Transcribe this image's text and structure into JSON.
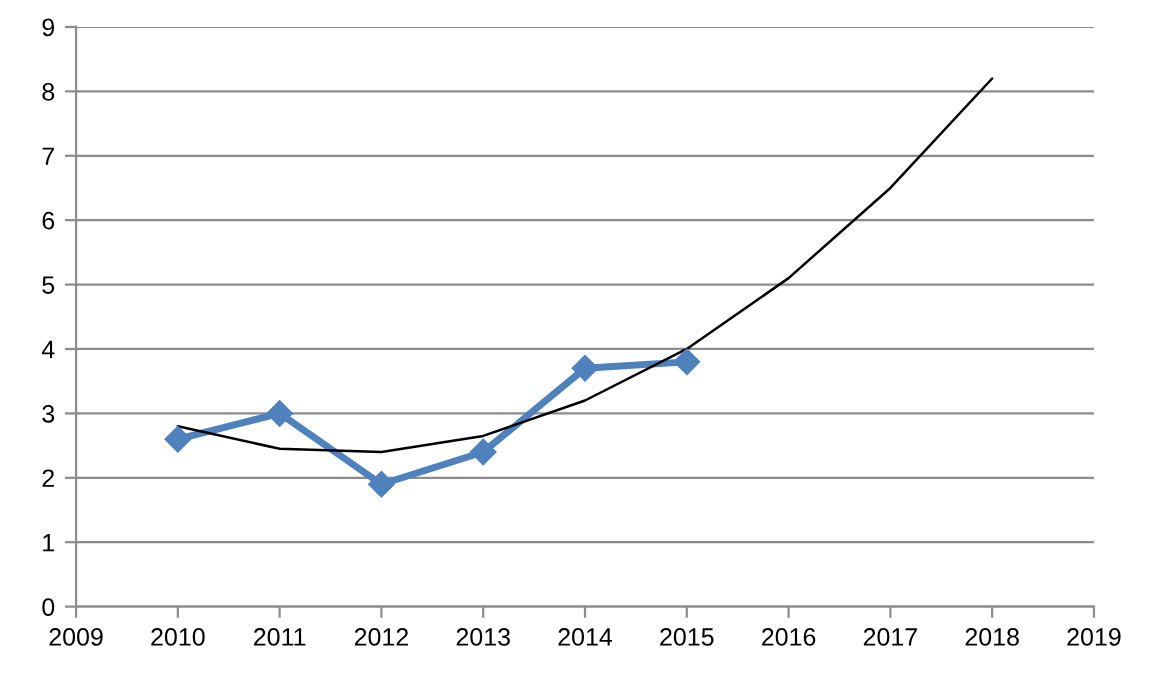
{
  "chart_data": {
    "type": "line",
    "x": [
      2010,
      2011,
      2012,
      2013,
      2014,
      2015
    ],
    "series": [
      {
        "color": "#4f81bd",
        "values": [
          2.6,
          3.0,
          1.9,
          2.4,
          3.7,
          3.8
        ],
        "marker": "diamond",
        "line_style": "solid"
      },
      {
        "color": "#000000",
        "x": [
          2010,
          2011,
          2012,
          2013,
          2014,
          2015,
          2016,
          2017,
          2018
        ],
        "values": [
          2.8,
          2.45,
          2.4,
          2.65,
          3.2,
          4.0,
          5.1,
          6.5,
          8.2
        ],
        "marker": "none",
        "line_style": "solid"
      }
    ],
    "xlim": [
      2009,
      2019
    ],
    "xticks": [
      2009,
      2010,
      2011,
      2012,
      2013,
      2014,
      2015,
      2016,
      2017,
      2018,
      2019
    ],
    "ylim": [
      0,
      9
    ],
    "yticks": [
      0,
      1,
      2,
      3,
      4,
      5,
      6,
      7,
      8,
      9
    ],
    "grid": "y",
    "legend": false
  }
}
